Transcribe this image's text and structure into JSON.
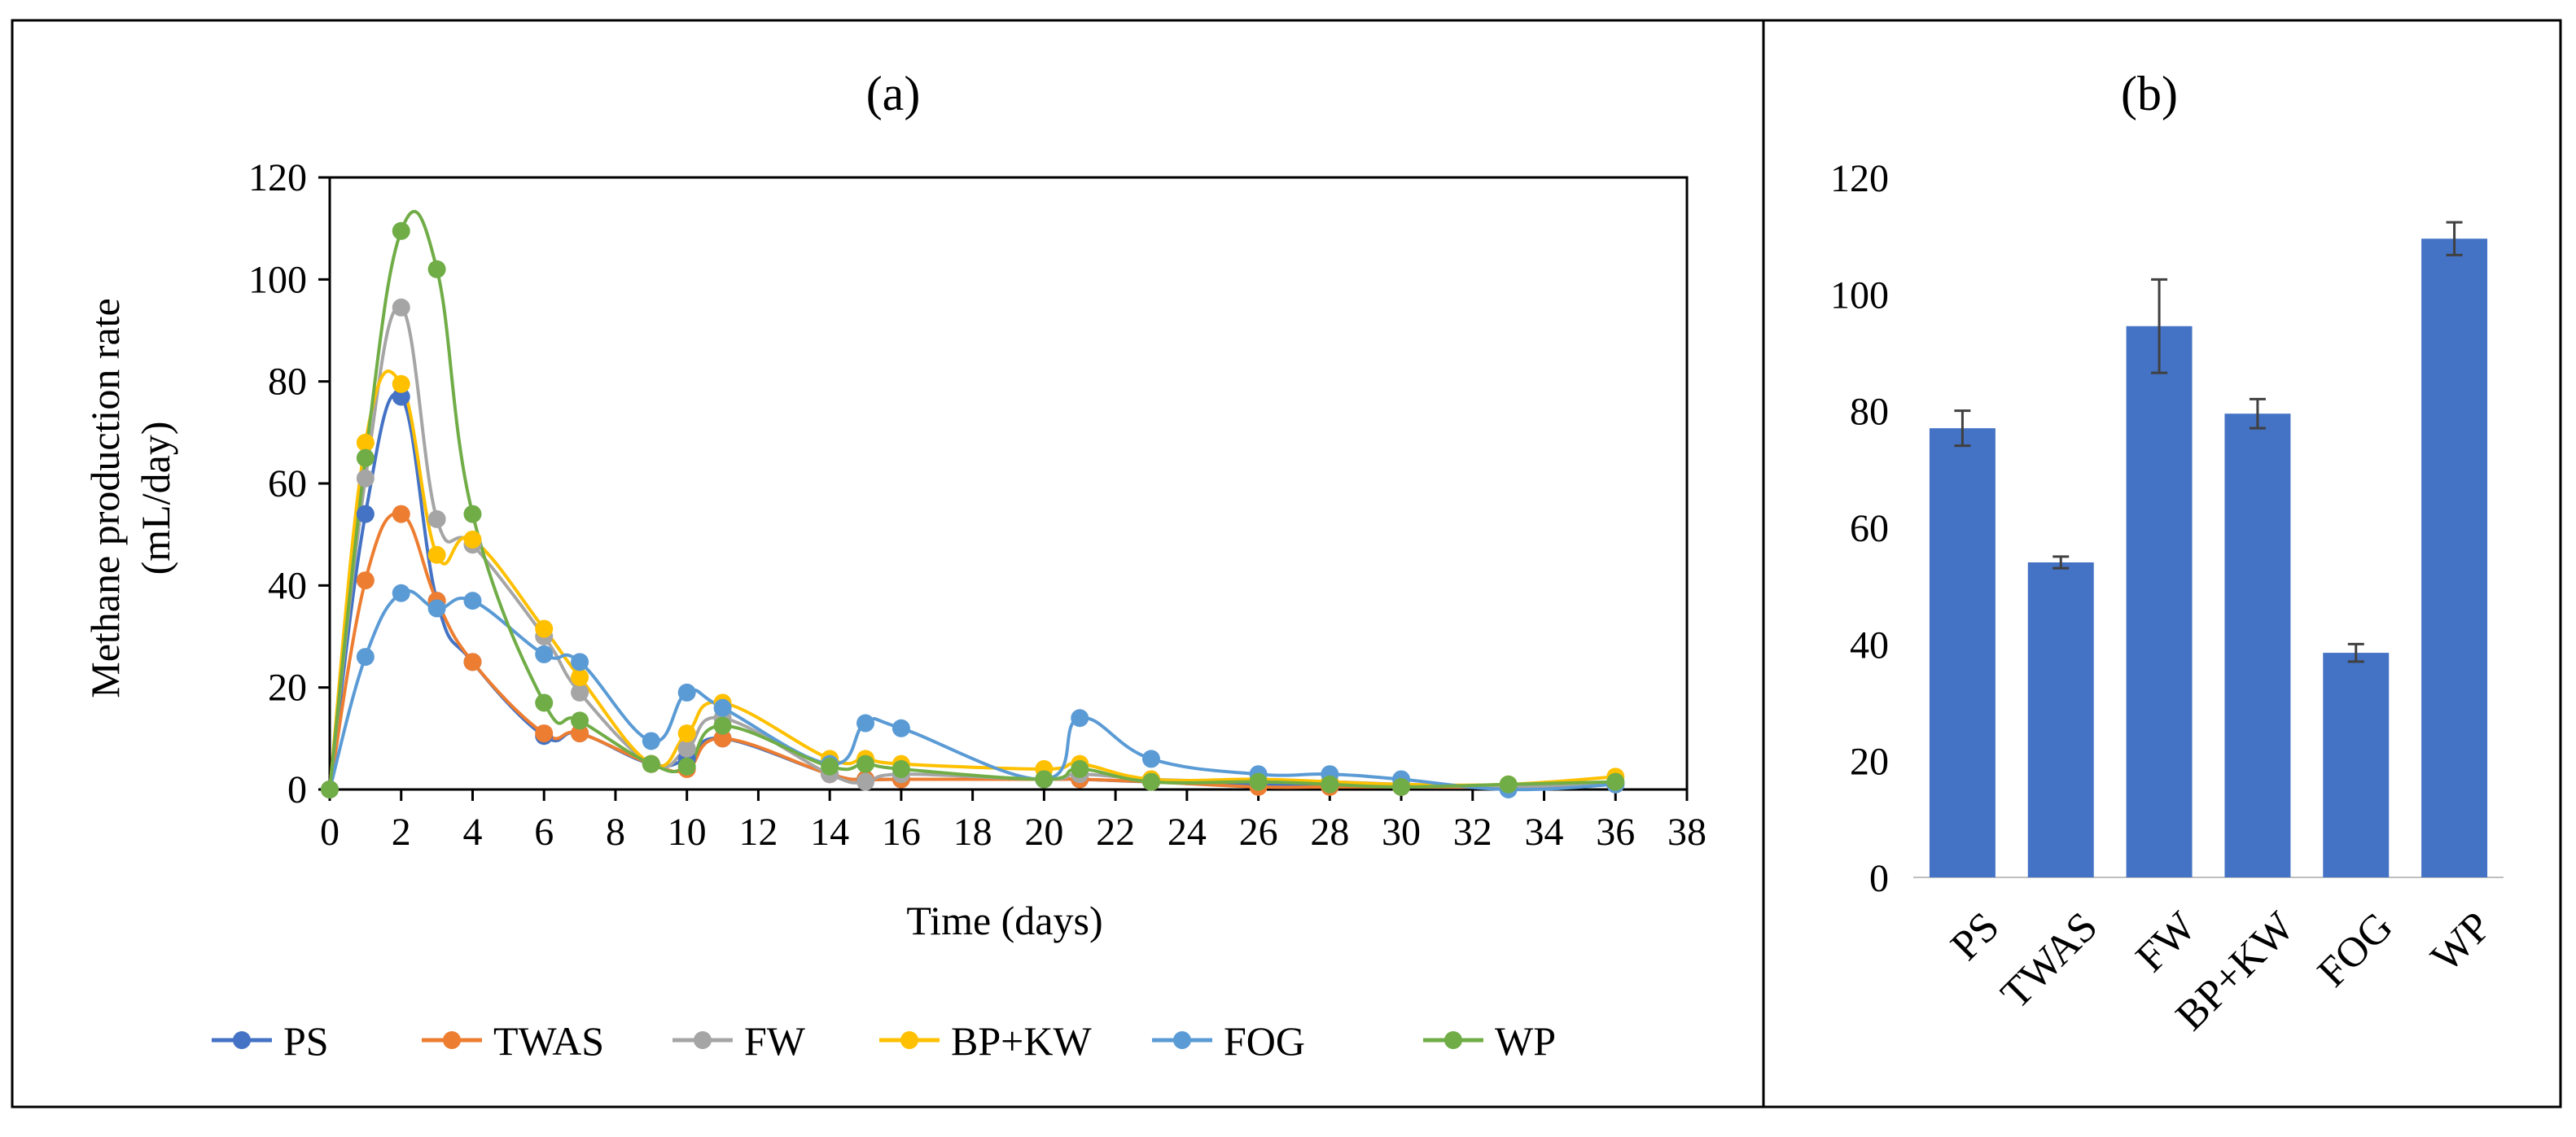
{
  "chart_data": [
    {
      "type": "line",
      "title": "(a)",
      "xlabel": "Time (days)",
      "ylabel": "Methane production rate (mL/day)",
      "ylabel_lines": [
        "Methane production rate",
        "(mL/day)"
      ],
      "xlim": [
        0,
        38
      ],
      "ylim": [
        0,
        120
      ],
      "xticks": [
        0,
        2,
        4,
        6,
        8,
        10,
        12,
        14,
        16,
        18,
        20,
        22,
        24,
        26,
        28,
        30,
        32,
        34,
        36,
        38
      ],
      "yticks": [
        0,
        20,
        40,
        60,
        80,
        100,
        120
      ],
      "legend_position": "bottom",
      "series": [
        {
          "name": "PS",
          "color": "#4472C4",
          "x": [
            0,
            1,
            2,
            3,
            4,
            6,
            7,
            9,
            10,
            11,
            14,
            15,
            16,
            20,
            21,
            23,
            26,
            28,
            30,
            33,
            36
          ],
          "y": [
            0,
            54,
            77,
            37,
            25,
            10.5,
            11,
            5,
            6,
            10,
            3,
            2,
            2,
            2,
            2,
            1.5,
            1,
            1,
            0.5,
            0.5,
            1
          ]
        },
        {
          "name": "TWAS",
          "color": "#ED7D31",
          "x": [
            0,
            1,
            2,
            3,
            4,
            6,
            7,
            9,
            10,
            11,
            14,
            15,
            16,
            20,
            21,
            23,
            26,
            28,
            30,
            33,
            36
          ],
          "y": [
            0,
            41,
            54,
            37,
            25,
            11,
            11,
            5,
            4,
            10,
            3,
            2,
            2,
            2,
            2,
            1.5,
            0.5,
            0.5,
            0.5,
            0.5,
            1
          ]
        },
        {
          "name": "FW",
          "color": "#A5A5A5",
          "x": [
            0,
            1,
            2,
            3,
            4,
            6,
            7,
            9,
            10,
            11,
            14,
            15,
            16,
            20,
            21,
            23,
            26,
            28,
            30,
            33,
            36
          ],
          "y": [
            0,
            61,
            94.5,
            53,
            48,
            30,
            19,
            5,
            8,
            14,
            3,
            1.5,
            3,
            2,
            3,
            2,
            1.5,
            1.5,
            1,
            0.5,
            1.5
          ]
        },
        {
          "name": "BP+KW",
          "color": "#FFC000",
          "x": [
            0,
            1,
            2,
            3,
            4,
            6,
            7,
            9,
            10,
            11,
            14,
            15,
            16,
            20,
            21,
            23,
            26,
            28,
            30,
            33,
            36
          ],
          "y": [
            0,
            68,
            79.5,
            46,
            49,
            31.5,
            22,
            5,
            11,
            17,
            6,
            6,
            5,
            4,
            5,
            2,
            2,
            1.5,
            1,
            1,
            2.5
          ]
        },
        {
          "name": "FOG",
          "color": "#5B9BD5",
          "x": [
            0,
            1,
            2,
            3,
            4,
            6,
            7,
            9,
            10,
            11,
            14,
            15,
            16,
            20,
            21,
            23,
            26,
            28,
            30,
            33,
            36
          ],
          "y": [
            0,
            26,
            38.5,
            35.5,
            37,
            26.5,
            25,
            9.5,
            19,
            16,
            5,
            13,
            12,
            2,
            14,
            6,
            3,
            3,
            2,
            0,
            1
          ]
        },
        {
          "name": "WP",
          "color": "#70AD47",
          "x": [
            0,
            1,
            2,
            3,
            4,
            6,
            7,
            9,
            10,
            11,
            14,
            15,
            16,
            20,
            21,
            23,
            26,
            28,
            30,
            33,
            36
          ],
          "y": [
            0,
            65,
            109.5,
            102,
            54,
            17,
            13.5,
            5,
            4.5,
            12.5,
            4.5,
            5,
            4,
            2,
            4,
            1.5,
            1.5,
            1,
            0.5,
            1,
            1.5
          ]
        }
      ]
    },
    {
      "type": "bar",
      "title": "(b)",
      "xlabel": "",
      "ylabel": "",
      "ylim": [
        0,
        120
      ],
      "yticks": [
        0,
        20,
        40,
        60,
        80,
        100,
        120
      ],
      "categories": [
        "PS",
        "TWAS",
        "FW",
        "BP+KW",
        "FOG",
        "WP"
      ],
      "values": [
        77,
        54,
        94.5,
        79.5,
        38.5,
        109.5
      ],
      "errors": [
        3,
        1,
        8,
        2.5,
        1.5,
        2.8
      ],
      "bar_color": "#4472C4"
    }
  ]
}
